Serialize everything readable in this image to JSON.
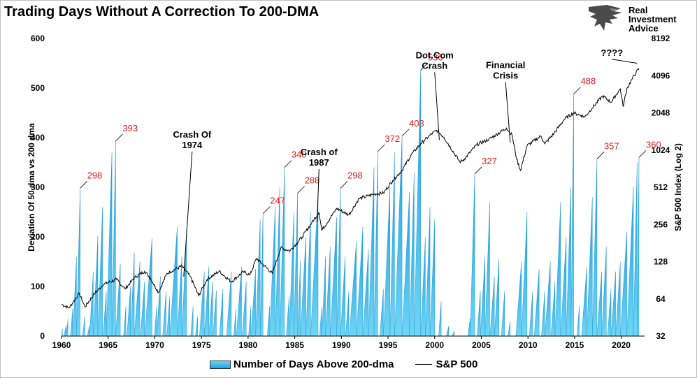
{
  "title": "Trading Days Without A Correction To 200-DMA",
  "brand": {
    "name": "Real Investment Advice",
    "line1": "Real",
    "line2": "Investment",
    "line3": "Advice"
  },
  "legend": {
    "bars": "Number of Days Above 200-dma",
    "line": "S&P 500"
  },
  "chart_data": {
    "type": "bar",
    "title": "Trading Days Without A Correction To 200-DMA",
    "ylabel": "Deviation Of 50 dma vs 200 dma",
    "y2label": "S&P 500 Index (Log 2)",
    "ylim": [
      0,
      600
    ],
    "y2lim": [
      32,
      8192
    ],
    "y2scale": "log2",
    "xlim": [
      1960,
      2022.5
    ],
    "xticks": [
      1960,
      1965,
      1970,
      1975,
      1980,
      1985,
      1990,
      1995,
      2000,
      2005,
      2010,
      2015,
      2020
    ],
    "yticks": [
      0,
      100,
      200,
      300,
      400,
      500,
      600
    ],
    "y2ticks": [
      32,
      64,
      128,
      256,
      512,
      1024,
      2048,
      4096,
      8192
    ],
    "colors": {
      "bars_top": "#6fd3f5",
      "bars_bottom": "#1aa7e6",
      "line": "#000000",
      "labels": "#e0201b"
    },
    "series": [
      {
        "name": "Number of Days Above 200-dma",
        "type": "bar",
        "peaks": [
          [
            1960.1,
            15
          ],
          [
            1960.5,
            22
          ],
          [
            1960.7,
            35
          ],
          [
            1961.2,
            55
          ],
          [
            1961.6,
            160
          ],
          [
            1962.0,
            298
          ],
          [
            1962.5,
            40
          ],
          [
            1963.0,
            20
          ],
          [
            1963.4,
            130
          ],
          [
            1963.9,
            202
          ],
          [
            1964.4,
            260
          ],
          [
            1964.8,
            90
          ],
          [
            1965.4,
            370
          ],
          [
            1965.8,
            393
          ],
          [
            1966.3,
            145
          ],
          [
            1966.9,
            60
          ],
          [
            1967.4,
            100
          ],
          [
            1967.8,
            168
          ],
          [
            1968.4,
            150
          ],
          [
            1968.9,
            110
          ],
          [
            1969.7,
            197
          ],
          [
            1970.2,
            60
          ],
          [
            1970.6,
            120
          ],
          [
            1971.2,
            90
          ],
          [
            1971.6,
            80
          ],
          [
            1972.4,
            220
          ],
          [
            1972.9,
            160
          ],
          [
            1973.4,
            215
          ],
          [
            1974.1,
            60
          ],
          [
            1974.6,
            40
          ],
          [
            1975.3,
            130
          ],
          [
            1975.8,
            140
          ],
          [
            1976.2,
            110
          ],
          [
            1976.6,
            92
          ],
          [
            1977.3,
            95
          ],
          [
            1978.2,
            130
          ],
          [
            1978.7,
            55
          ],
          [
            1979.3,
            140
          ],
          [
            1979.8,
            110
          ],
          [
            1980.3,
            60
          ],
          [
            1980.8,
            135
          ],
          [
            1981.3,
            235
          ],
          [
            1981.6,
            247
          ],
          [
            1982.3,
            60
          ],
          [
            1982.9,
            260
          ],
          [
            1983.4,
            300
          ],
          [
            1983.9,
            340
          ],
          [
            1984.4,
            80
          ],
          [
            1984.9,
            250
          ],
          [
            1985.3,
            288
          ],
          [
            1985.6,
            150
          ],
          [
            1986.2,
            200
          ],
          [
            1986.7,
            250
          ],
          [
            1987.5,
            290
          ],
          [
            1987.9,
            60
          ],
          [
            1988.3,
            160
          ],
          [
            1988.8,
            180
          ],
          [
            1989.5,
            240
          ],
          [
            1989.9,
            298
          ],
          [
            1990.4,
            160
          ],
          [
            1990.8,
            90
          ],
          [
            1991.6,
            190
          ],
          [
            1992.3,
            220
          ],
          [
            1992.9,
            175
          ],
          [
            1993.5,
            340
          ],
          [
            1993.9,
            372
          ],
          [
            1994.5,
            95
          ],
          [
            1995.2,
            300
          ],
          [
            1995.7,
            370
          ],
          [
            1996.5,
            403
          ],
          [
            1997.3,
            290
          ],
          [
            1997.8,
            330
          ],
          [
            1998.5,
            536
          ],
          [
            1999.0,
            200
          ],
          [
            1999.5,
            260
          ],
          [
            2000.0,
            235
          ],
          [
            2000.7,
            70
          ],
          [
            2001.5,
            20
          ],
          [
            2002.1,
            10
          ],
          [
            2003.8,
            35
          ],
          [
            2004.3,
            327
          ],
          [
            2004.9,
            90
          ],
          [
            2005.4,
            160
          ],
          [
            2005.9,
            270
          ],
          [
            2006.4,
            120
          ],
          [
            2006.9,
            155
          ],
          [
            2007.5,
            90
          ],
          [
            2008.1,
            30
          ],
          [
            2009.3,
            150
          ],
          [
            2009.9,
            250
          ],
          [
            2010.5,
            90
          ],
          [
            2011.2,
            135
          ],
          [
            2011.8,
            90
          ],
          [
            2012.4,
            150
          ],
          [
            2012.9,
            110
          ],
          [
            2013.5,
            270
          ],
          [
            2014.1,
            200
          ],
          [
            2014.6,
            300
          ],
          [
            2014.9,
            488
          ],
          [
            2015.5,
            60
          ],
          [
            2016.3,
            140
          ],
          [
            2016.9,
            280
          ],
          [
            2017.4,
            357
          ],
          [
            2017.9,
            130
          ],
          [
            2018.4,
            180
          ],
          [
            2018.9,
            95
          ],
          [
            2019.4,
            130
          ],
          [
            2019.9,
            150
          ],
          [
            2020.6,
            210
          ],
          [
            2021.3,
            300
          ],
          [
            2021.7,
            350
          ],
          [
            2021.9,
            360
          ]
        ]
      },
      {
        "name": "S&P 500",
        "type": "line",
        "points": [
          [
            1960.0,
            58
          ],
          [
            1960.8,
            54
          ],
          [
            1961.9,
            71
          ],
          [
            1962.5,
            55
          ],
          [
            1963.5,
            70
          ],
          [
            1964.5,
            84
          ],
          [
            1965.9,
            92
          ],
          [
            1966.8,
            77
          ],
          [
            1967.9,
            96
          ],
          [
            1968.9,
            107
          ],
          [
            1969.5,
            95
          ],
          [
            1970.4,
            72
          ],
          [
            1971.3,
            103
          ],
          [
            1972.9,
            118
          ],
          [
            1973.8,
            97
          ],
          [
            1974.7,
            68
          ],
          [
            1975.6,
            92
          ],
          [
            1976.9,
            107
          ],
          [
            1978.2,
            88
          ],
          [
            1979.5,
            106
          ],
          [
            1980.2,
            100
          ],
          [
            1980.9,
            136
          ],
          [
            1982.6,
            103
          ],
          [
            1983.5,
            165
          ],
          [
            1984.5,
            157
          ],
          [
            1985.8,
            203
          ],
          [
            1987.6,
            322
          ],
          [
            1987.9,
            230
          ],
          [
            1989.5,
            345
          ],
          [
            1990.8,
            306
          ],
          [
            1991.9,
            415
          ],
          [
            1993.5,
            450
          ],
          [
            1994.5,
            460
          ],
          [
            1995.5,
            580
          ],
          [
            1996.5,
            700
          ],
          [
            1997.5,
            940
          ],
          [
            1998.5,
            1150
          ],
          [
            1999.5,
            1350
          ],
          [
            2000.2,
            1480
          ],
          [
            2001.0,
            1300
          ],
          [
            2002.7,
            820
          ],
          [
            2003.2,
            870
          ],
          [
            2004.5,
            1130
          ],
          [
            2005.8,
            1250
          ],
          [
            2007.7,
            1540
          ],
          [
            2008.3,
            1350
          ],
          [
            2008.8,
            860
          ],
          [
            2009.2,
            700
          ],
          [
            2009.9,
            1110
          ],
          [
            2011.4,
            1330
          ],
          [
            2011.8,
            1150
          ],
          [
            2012.8,
            1400
          ],
          [
            2013.9,
            1820
          ],
          [
            2014.9,
            2050
          ],
          [
            2015.7,
            1950
          ],
          [
            2016.1,
            1900
          ],
          [
            2016.9,
            2250
          ],
          [
            2018.0,
            2800
          ],
          [
            2018.9,
            2500
          ],
          [
            2019.9,
            3200
          ],
          [
            2020.2,
            2300
          ],
          [
            2020.6,
            3200
          ],
          [
            2021.2,
            3900
          ],
          [
            2021.9,
            4700
          ]
        ]
      }
    ],
    "bar_labels": [
      {
        "x": 1962.0,
        "y": 298,
        "text": "298"
      },
      {
        "x": 1965.8,
        "y": 393,
        "text": "393"
      },
      {
        "x": 1981.6,
        "y": 247,
        "text": "247"
      },
      {
        "x": 1983.9,
        "y": 340,
        "text": "340"
      },
      {
        "x": 1985.3,
        "y": 288,
        "text": "288"
      },
      {
        "x": 1989.9,
        "y": 298,
        "text": "298"
      },
      {
        "x": 1993.9,
        "y": 372,
        "text": "372"
      },
      {
        "x": 1996.5,
        "y": 403,
        "text": "403"
      },
      {
        "x": 1998.5,
        "y": 536,
        "text": "536"
      },
      {
        "x": 2004.3,
        "y": 327,
        "text": "327"
      },
      {
        "x": 2014.9,
        "y": 488,
        "text": "488"
      },
      {
        "x": 2017.4,
        "y": 357,
        "text": "357"
      },
      {
        "x": 2021.9,
        "y": 360,
        "text": "360"
      }
    ],
    "annotations": [
      {
        "lines": [
          "Crash Of",
          "1974"
        ],
        "x": 1974.0,
        "y": 400,
        "target_x": 1973.1,
        "target_y": 120
      },
      {
        "lines": [
          "Crash of",
          "1987"
        ],
        "x": 1987.6,
        "y": 365,
        "target_x": 1987.4,
        "target_y": 230
      },
      {
        "lines": [
          "Dot.Com",
          "Crash"
        ],
        "x": 2000.0,
        "y": 560,
        "target_x": 2000.5,
        "target_y": 395
      },
      {
        "lines": [
          "Financial",
          "Crisis"
        ],
        "x": 2007.6,
        "y": 540,
        "target_x": 2008.1,
        "target_y": 390
      },
      {
        "lines": [
          "????"
        ],
        "x": 2019.0,
        "y": 565,
        "target_x": 2021.7,
        "target_y": 550
      }
    ]
  }
}
